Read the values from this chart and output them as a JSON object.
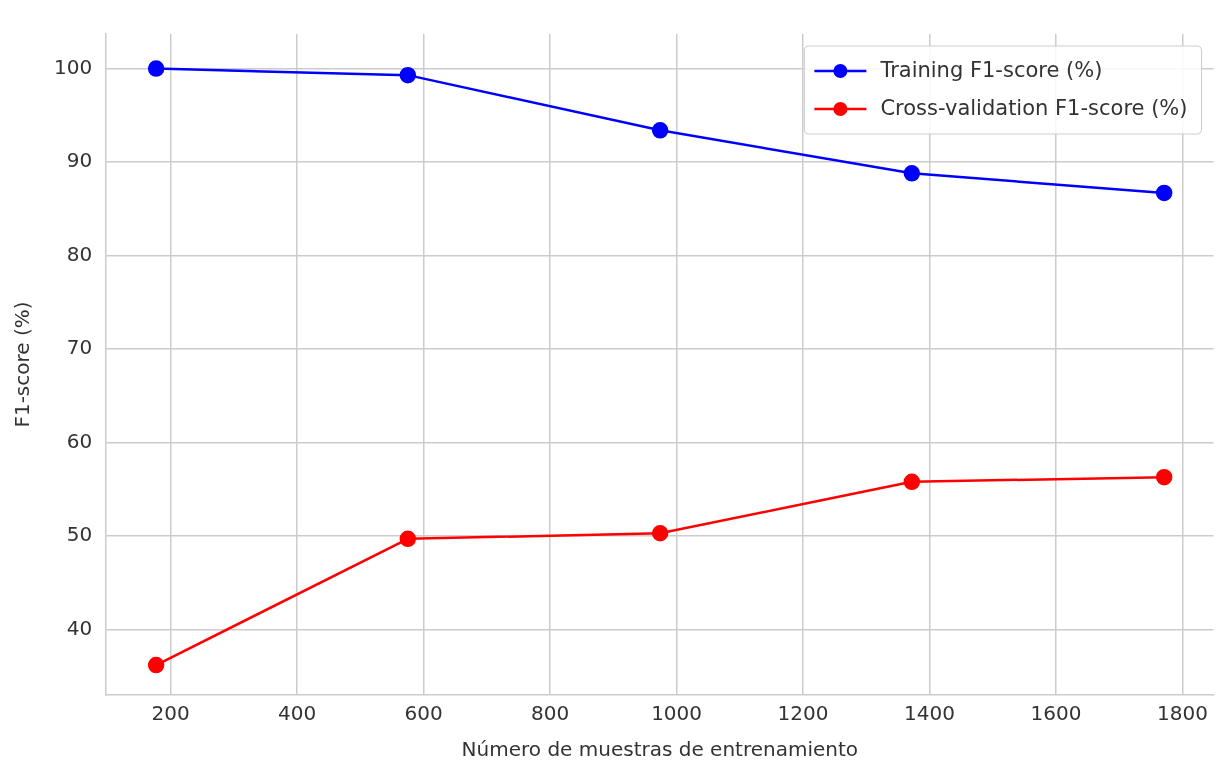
{
  "chart_data": {
    "type": "line",
    "xlabel": "Número de muestras de entrenamiento",
    "ylabel": "F1-score (%)",
    "x": [
      177,
      575,
      974,
      1372,
      1771
    ],
    "series": [
      {
        "name": "Training F1-score (%)",
        "color": "#0000ff",
        "values": [
          100,
          99.3,
          93.4,
          88.8,
          86.7
        ]
      },
      {
        "name": "Cross-validation F1-score (%)",
        "color": "#ff0000",
        "values": [
          36.2,
          49.7,
          50.3,
          55.8,
          56.3
        ]
      }
    ],
    "xlim": [
      98,
      1849
    ],
    "xticks": [
      200,
      400,
      600,
      800,
      1000,
      1200,
      1400,
      1600,
      1800
    ],
    "ylim": [
      33,
      103.7
    ],
    "yticks": [
      40,
      50,
      60,
      70,
      80,
      90,
      100
    ],
    "grid": true,
    "legend": "top right",
    "marker": "circle",
    "line_style": "solid"
  }
}
